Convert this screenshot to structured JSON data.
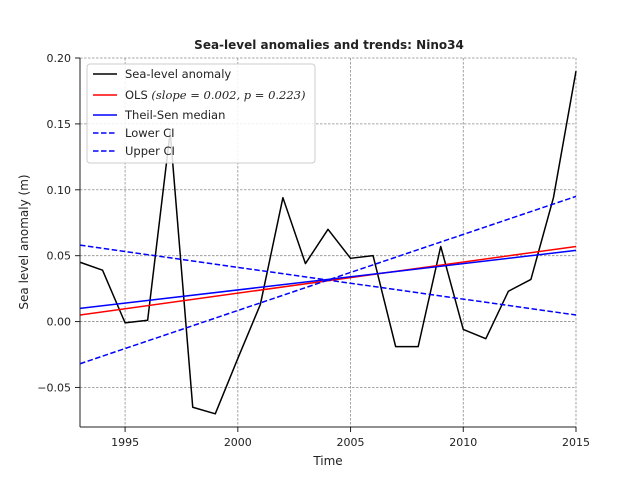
{
  "chart_data": {
    "type": "line",
    "title": "Sea-level anomalies and trends: Nino34",
    "xlabel": "Time",
    "ylabel": "Sea level anomaly (m)",
    "xlim": [
      1993,
      2015
    ],
    "ylim": [
      -0.08,
      0.2
    ],
    "x_ticks": [
      1995,
      2000,
      2005,
      2010,
      2015
    ],
    "y_ticks": [
      -0.05,
      0.0,
      0.05,
      0.1,
      0.15,
      0.2
    ],
    "y_tick_labels": [
      "−0.05",
      "0.00",
      "0.05",
      "0.10",
      "0.15",
      "0.20"
    ],
    "grid": true,
    "legend_position": "upper-left",
    "series": [
      {
        "name": "Sea-level anomaly",
        "color": "#000000",
        "style": "solid",
        "x": [
          1993,
          1994,
          1995,
          1996,
          1997,
          1998,
          1999,
          2000,
          2001,
          2002,
          2003,
          2004,
          2005,
          2006,
          2007,
          2008,
          2009,
          2010,
          2011,
          2012,
          2013,
          2014,
          2015
        ],
        "y": [
          0.045,
          0.039,
          -0.001,
          0.001,
          0.144,
          -0.065,
          -0.07,
          -0.028,
          0.013,
          0.094,
          0.044,
          0.07,
          0.048,
          0.05,
          -0.019,
          -0.019,
          0.057,
          -0.006,
          -0.013,
          0.023,
          0.032,
          0.094,
          0.19
        ]
      },
      {
        "name": "OLS",
        "legend_math": "(slope = 0.002, p = 0.223)",
        "color": "#ff0000",
        "style": "solid",
        "x": [
          1993,
          2015
        ],
        "y": [
          0.005,
          0.057
        ]
      },
      {
        "name": "Theil-Sen median",
        "color": "#0000ff",
        "style": "solid",
        "x": [
          1993,
          2015
        ],
        "y": [
          0.01,
          0.054
        ]
      },
      {
        "name": "Lower CI",
        "color": "#0000ff",
        "style": "dashed",
        "x": [
          1993,
          2015
        ],
        "y": [
          0.058,
          0.005
        ]
      },
      {
        "name": "Upper CI",
        "color": "#0000ff",
        "style": "dashed",
        "x": [
          1993,
          2015
        ],
        "y": [
          -0.032,
          0.095
        ]
      }
    ]
  }
}
